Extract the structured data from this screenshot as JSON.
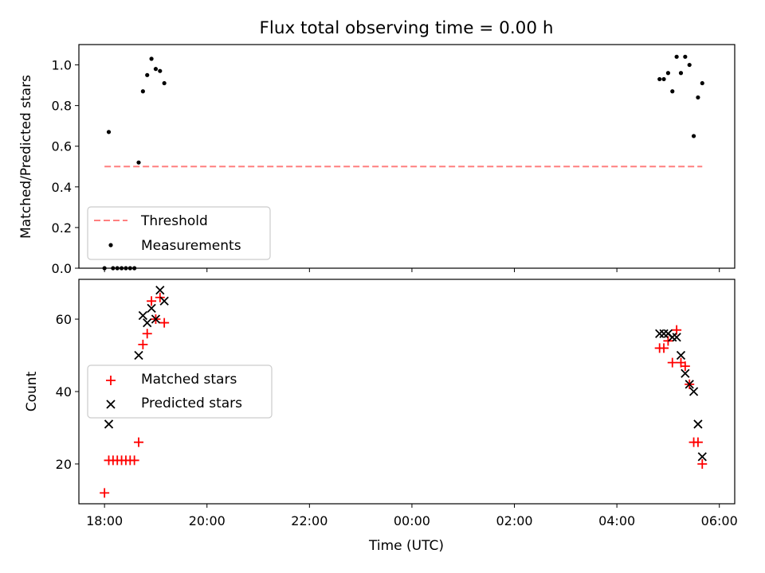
{
  "chart_data": [
    {
      "type": "scatter",
      "title": "Flux total observing time = 0.00 h",
      "xlabel": "",
      "ylabel": "Matched/Predicted stars",
      "xlim_hours": [
        17.5,
        30.3
      ],
      "ylim": [
        0,
        1.1
      ],
      "yticks": [
        0.0,
        0.2,
        0.4,
        0.6,
        0.8,
        1.0
      ],
      "ytick_labels": [
        "0.0",
        "0.2",
        "0.4",
        "0.6",
        "0.8",
        "1.0"
      ],
      "legend": {
        "placement": "lower-left",
        "entries": [
          "Threshold",
          "Measurements"
        ]
      },
      "threshold": {
        "name": "Threshold",
        "value": 0.5,
        "x_start": "18:00",
        "x_end": "05:40",
        "color": "#ff7f7f"
      },
      "measurements": {
        "name": "Measurements",
        "color": "#000000",
        "points": [
          [
            "18:00",
            0.0
          ],
          [
            "18:05",
            0.67
          ],
          [
            "18:10",
            0.0
          ],
          [
            "18:15",
            0.0
          ],
          [
            "18:20",
            0.0
          ],
          [
            "18:25",
            0.0
          ],
          [
            "18:30",
            0.0
          ],
          [
            "18:35",
            0.0
          ],
          [
            "18:40",
            0.52
          ],
          [
            "18:45",
            0.87
          ],
          [
            "18:50",
            0.95
          ],
          [
            "18:55",
            1.03
          ],
          [
            "19:00",
            0.98
          ],
          [
            "19:05",
            0.97
          ],
          [
            "19:10",
            0.91
          ],
          [
            "04:50",
            0.93
          ],
          [
            "04:55",
            0.93
          ],
          [
            "05:00",
            0.96
          ],
          [
            "05:05",
            0.87
          ],
          [
            "05:10",
            1.04
          ],
          [
            "05:15",
            0.96
          ],
          [
            "05:20",
            1.04
          ],
          [
            "05:25",
            1.0
          ],
          [
            "05:30",
            0.65
          ],
          [
            "05:35",
            0.84
          ],
          [
            "05:40",
            0.91
          ]
        ]
      }
    },
    {
      "type": "scatter",
      "title": "",
      "xlabel": "Time (UTC)",
      "ylabel": "Count",
      "xlim_hours": [
        17.5,
        30.3
      ],
      "ylim": [
        9,
        71
      ],
      "yticks": [
        20,
        40,
        60
      ],
      "ytick_labels": [
        "20",
        "40",
        "60"
      ],
      "xticks_hours": [
        18,
        20,
        22,
        24,
        26,
        28,
        30
      ],
      "xtick_labels": [
        "18:00",
        "20:00",
        "22:00",
        "00:00",
        "02:00",
        "04:00",
        "06:00"
      ],
      "legend": {
        "placement": "center-left",
        "entries": [
          "Matched stars",
          "Predicted stars"
        ]
      },
      "series": [
        {
          "name": "Matched stars",
          "marker": "+",
          "color": "#ff0000",
          "points": [
            [
              "18:00",
              12
            ],
            [
              "18:05",
              21
            ],
            [
              "18:10",
              21
            ],
            [
              "18:15",
              21
            ],
            [
              "18:20",
              21
            ],
            [
              "18:25",
              21
            ],
            [
              "18:30",
              21
            ],
            [
              "18:35",
              21
            ],
            [
              "18:40",
              26
            ],
            [
              "18:45",
              53
            ],
            [
              "18:50",
              56
            ],
            [
              "18:55",
              65
            ],
            [
              "19:00",
              60
            ],
            [
              "19:05",
              66
            ],
            [
              "19:10",
              59
            ],
            [
              "04:50",
              52
            ],
            [
              "04:55",
              52
            ],
            [
              "05:00",
              54
            ],
            [
              "05:05",
              48
            ],
            [
              "05:10",
              57
            ],
            [
              "05:15",
              48
            ],
            [
              "05:20",
              47
            ],
            [
              "05:25",
              42
            ],
            [
              "05:30",
              26
            ],
            [
              "05:35",
              26
            ],
            [
              "05:40",
              20
            ]
          ]
        },
        {
          "name": "Predicted stars",
          "marker": "x",
          "color": "#000000",
          "points": [
            [
              "18:05",
              31
            ],
            [
              "18:40",
              50
            ],
            [
              "18:45",
              61
            ],
            [
              "18:50",
              59
            ],
            [
              "18:55",
              63
            ],
            [
              "19:00",
              60
            ],
            [
              "19:05",
              68
            ],
            [
              "19:10",
              65
            ],
            [
              "04:50",
              56
            ],
            [
              "04:55",
              56
            ],
            [
              "05:00",
              56
            ],
            [
              "05:05",
              55
            ],
            [
              "05:10",
              55
            ],
            [
              "05:15",
              50
            ],
            [
              "05:20",
              45
            ],
            [
              "05:25",
              42
            ],
            [
              "05:30",
              40
            ],
            [
              "05:35",
              31
            ],
            [
              "05:40",
              22
            ]
          ]
        }
      ]
    }
  ]
}
